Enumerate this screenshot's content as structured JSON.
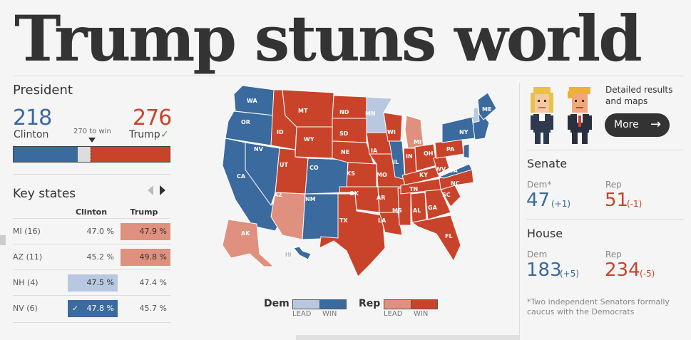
{
  "headline": "Trump stuns world",
  "president": {
    "title": "President",
    "clinton_votes": "218",
    "clinton_name": "Clinton",
    "trump_votes": "276",
    "trump_name": "Trump",
    "threshold_label": "270 to win",
    "win_mark": "✓"
  },
  "key_states": {
    "title": "Key states",
    "col_clinton": "Clinton",
    "col_trump": "Trump",
    "rows": [
      {
        "state": "MI",
        "ev": "(16)",
        "clinton": "47.0 %",
        "trump": "47.9 %"
      },
      {
        "state": "AZ",
        "ev": "(11)",
        "clinton": "45.2 %",
        "trump": "49.8 %"
      },
      {
        "state": "NH",
        "ev": "(4)",
        "clinton": "47.5 %",
        "trump": "47.4 %"
      },
      {
        "state": "NV",
        "ev": "(6)",
        "clinton": "47.8 %",
        "trump": "45.7 %"
      }
    ]
  },
  "map": {
    "states": [
      "WA",
      "OR",
      "CA",
      "NV",
      "ID",
      "MT",
      "WY",
      "UT",
      "CO",
      "AZ",
      "NM",
      "ND",
      "SD",
      "NE",
      "KS",
      "OK",
      "TX",
      "MN",
      "IA",
      "MO",
      "AR",
      "LA",
      "WI",
      "IL",
      "MS",
      "MI",
      "IN",
      "KY",
      "TN",
      "AL",
      "OH",
      "WV",
      "VA",
      "NC",
      "SC",
      "GA",
      "FL",
      "PA",
      "NY",
      "ME",
      "AK",
      "HI"
    ],
    "legend": {
      "dem": "Dem",
      "rep": "Rep",
      "lead": "LEAD",
      "win": "WIN"
    }
  },
  "promo": {
    "text": "Detailed results and maps",
    "button": "More",
    "arrow": "→"
  },
  "senate": {
    "title": "Senate",
    "dem_label": "Dem*",
    "dem_value": "47",
    "dem_change": "(+1)",
    "rep_label": "Rep",
    "rep_value": "51",
    "rep_change": "(-1)"
  },
  "house": {
    "title": "House",
    "dem_label": "Dem",
    "dem_value": "183",
    "dem_change": "(+5)",
    "rep_label": "Rep",
    "rep_value": "234",
    "rep_change": "(-5)"
  },
  "footnote": "*Two independent Senators formally caucus with the Democrats",
  "colors": {
    "dem_win": "#3a6a9e",
    "dem_lead": "#b8c8e0",
    "rep_win": "#c9432a",
    "rep_lead": "#e0907e"
  }
}
